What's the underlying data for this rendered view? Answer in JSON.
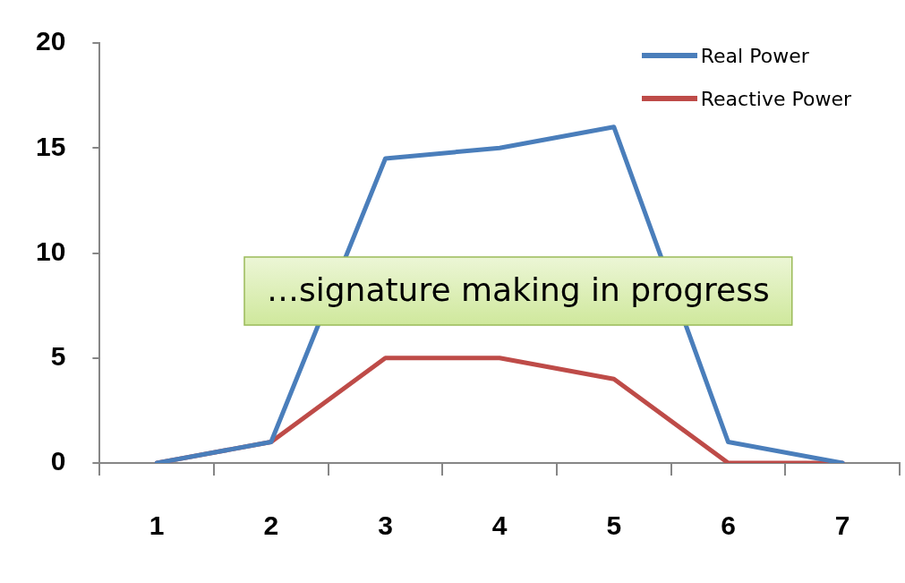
{
  "chart_data": {
    "type": "line",
    "categories": [
      "1",
      "2",
      "3",
      "4",
      "5",
      "6",
      "7"
    ],
    "series": [
      {
        "name": "Real Power",
        "color": "#4a7ebb",
        "values": [
          0,
          1,
          14.5,
          15,
          16,
          1,
          0
        ]
      },
      {
        "name": "Reactive Power",
        "color": "#be4b48",
        "values": [
          0,
          1,
          5,
          5,
          4,
          0,
          0
        ]
      }
    ],
    "ylim": [
      0,
      20
    ],
    "yticks": [
      0,
      5,
      10,
      15,
      20
    ],
    "grid": false,
    "legend": "top right",
    "marker": "none",
    "line_style": "solid",
    "annotations": [
      "…signature making in progress"
    ]
  }
}
